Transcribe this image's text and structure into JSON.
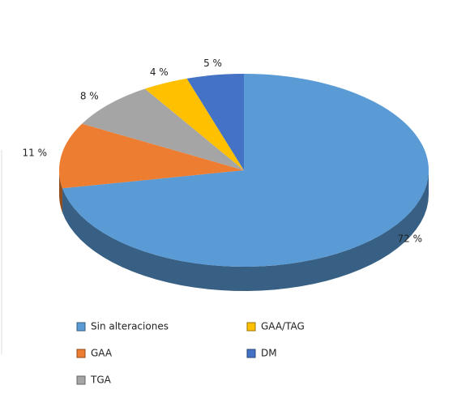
{
  "chart_data": {
    "type": "pie3d",
    "series": [
      {
        "name": "Sin alteraciones",
        "color": "#5b9bd5",
        "values": [
          72
        ],
        "value_labels": [
          "72 %"
        ]
      },
      {
        "name": "GAA",
        "color": "#ed7d31",
        "values": [
          11
        ],
        "value_labels": [
          "11 %"
        ]
      },
      {
        "name": "TGA",
        "color": "#a5a5a5",
        "values": [
          8
        ],
        "value_labels": [
          "8 %"
        ]
      },
      {
        "name": "GAA/TAG",
        "color": "#ffc000",
        "values": [
          4
        ],
        "value_labels": [
          "4 %"
        ]
      },
      {
        "name": "DM",
        "color": "#4472c4",
        "values": [
          5
        ],
        "value_labels": [
          "5 %"
        ]
      }
    ]
  }
}
